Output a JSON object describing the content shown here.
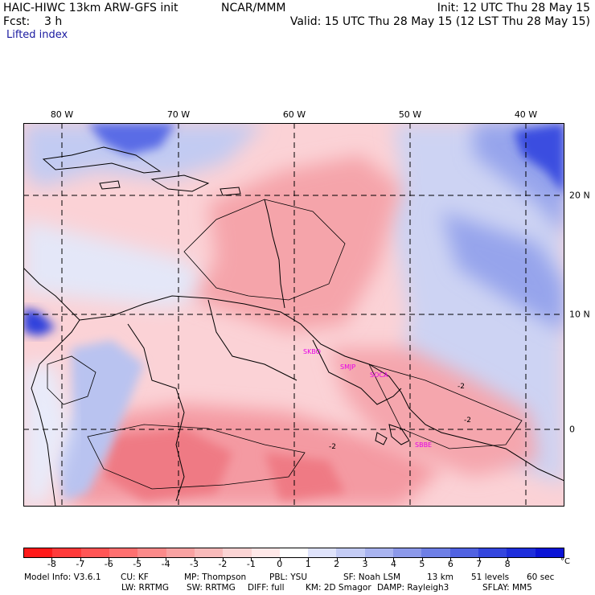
{
  "header": {
    "model": "HAIC-HIWC 13km ARW-GFS init",
    "center": "NCAR/MMM",
    "init": "Init: 12 UTC Thu 28 May 15",
    "fcst": "Fcst:    3 h",
    "valid": "Valid: 15 UTC Thu 28 May 15 (12 LST Thu 28 May 15)",
    "field": "Lifted index"
  },
  "map": {
    "lon_labels": [
      "80 W",
      "70 W",
      "60 W",
      "50 W",
      "40 W"
    ],
    "lat_labels": [
      "20 N",
      "10 N",
      "0"
    ],
    "stations": [
      "SKBO",
      "SMJP",
      "SOCA",
      "SBBE"
    ],
    "contour_label": "-2",
    "field_colors": {
      "strong_neg": "#f06470",
      "neg": "#f5a0a8",
      "weak_neg": "#fbd0d4",
      "neutral": "#ffffff",
      "weak_pos": "#d6dcf5",
      "pos": "#9aa8ee",
      "strong_pos": "#3246e0",
      "max_pos": "#1010d8"
    }
  },
  "colorbar": {
    "tick_labels": [
      "-8",
      "-7",
      "-6",
      "-5",
      "-4",
      "-3",
      "-2",
      "-1",
      "0",
      "1",
      "2",
      "3",
      "4",
      "5",
      "6",
      "7",
      "8"
    ],
    "unit": "°C",
    "colors": [
      "#ff1a1a",
      "#ff3a3a",
      "#ff5555",
      "#ff7070",
      "#fb8a8a",
      "#f8a2a2",
      "#f8baba",
      "#fbd4d4",
      "#ffe8e8",
      "#ffffff",
      "#dfe3fb",
      "#c4ccf5",
      "#a9b4f0",
      "#8c99ea",
      "#6e7fe6",
      "#5062e2",
      "#3446de",
      "#1e2edb",
      "#0b14d6"
    ]
  },
  "footer": {
    "line1": [
      "Model Info: V3.6.1",
      "CU: KF",
      "MP: Thompson",
      "PBL: YSU",
      "SF: Noah LSM",
      "13 km",
      "51 levels",
      "60 sec"
    ],
    "line2": [
      "LW: RRTMG",
      "SW: RRTMG",
      "DIFF: full",
      "KM: 2D Smagor",
      "DAMP: Rayleigh3",
      "SFLAY: MM5"
    ]
  }
}
